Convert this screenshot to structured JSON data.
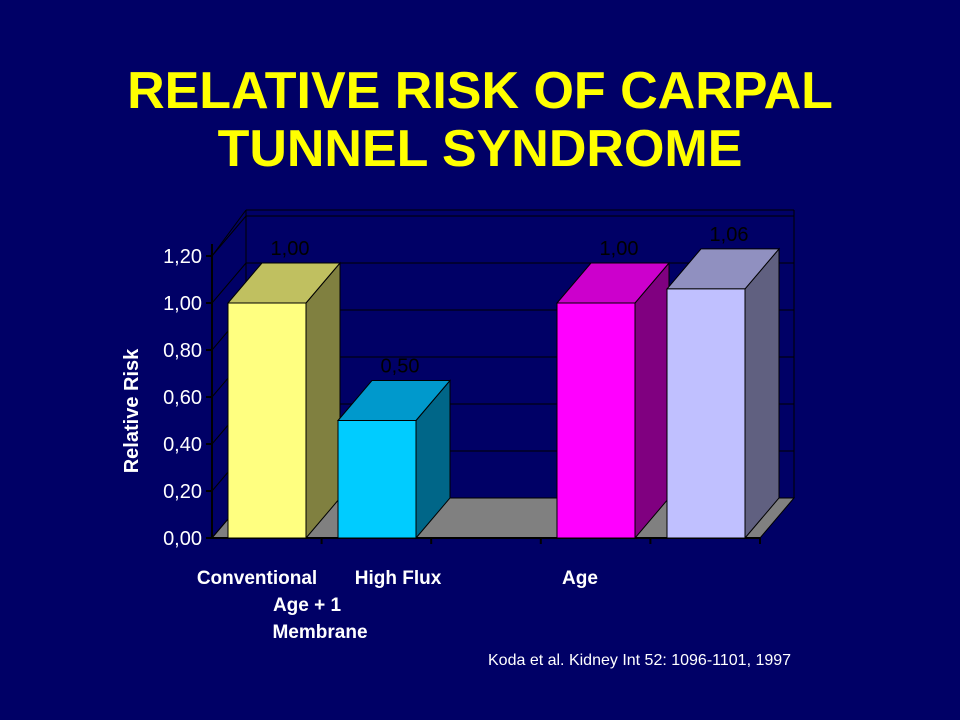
{
  "slide": {
    "title_line1": "RELATIVE RISK OF CARPAL",
    "title_line2": "TUNNEL SYNDROME",
    "citation": "Koda et al. Kidney Int 52: 1096-1101, 1997"
  },
  "chart_data": {
    "type": "bar",
    "style": "3d-clustered",
    "ylabel": "Relative Risk",
    "ylim": [
      0,
      1.2
    ],
    "yticks": [
      "0,00",
      "0,20",
      "0,40",
      "0,60",
      "0,80",
      "1,00",
      "1,20"
    ],
    "categories": [
      "Conventional",
      "High Flux",
      "Age",
      ""
    ],
    "category_sublabel": [
      "Age + 1",
      "Membrane"
    ],
    "bars": [
      {
        "value": 1.0,
        "label": "1,00",
        "color": "#ffff80",
        "top_color": "#c0c060",
        "side_color": "#808040"
      },
      {
        "value": 0.5,
        "label": "0,50",
        "color": "#00ccff",
        "top_color": "#0099cc",
        "side_color": "#006688"
      },
      {
        "value": 1.0,
        "label": "1,00",
        "color": "#ff00ff",
        "top_color": "#cc00cc",
        "side_color": "#800080"
      },
      {
        "value": 1.06,
        "label": "1,06",
        "color": "#c0c0ff",
        "top_color": "#9090c0",
        "side_color": "#606080"
      }
    ],
    "grid": true,
    "floor_color": "#808080"
  }
}
